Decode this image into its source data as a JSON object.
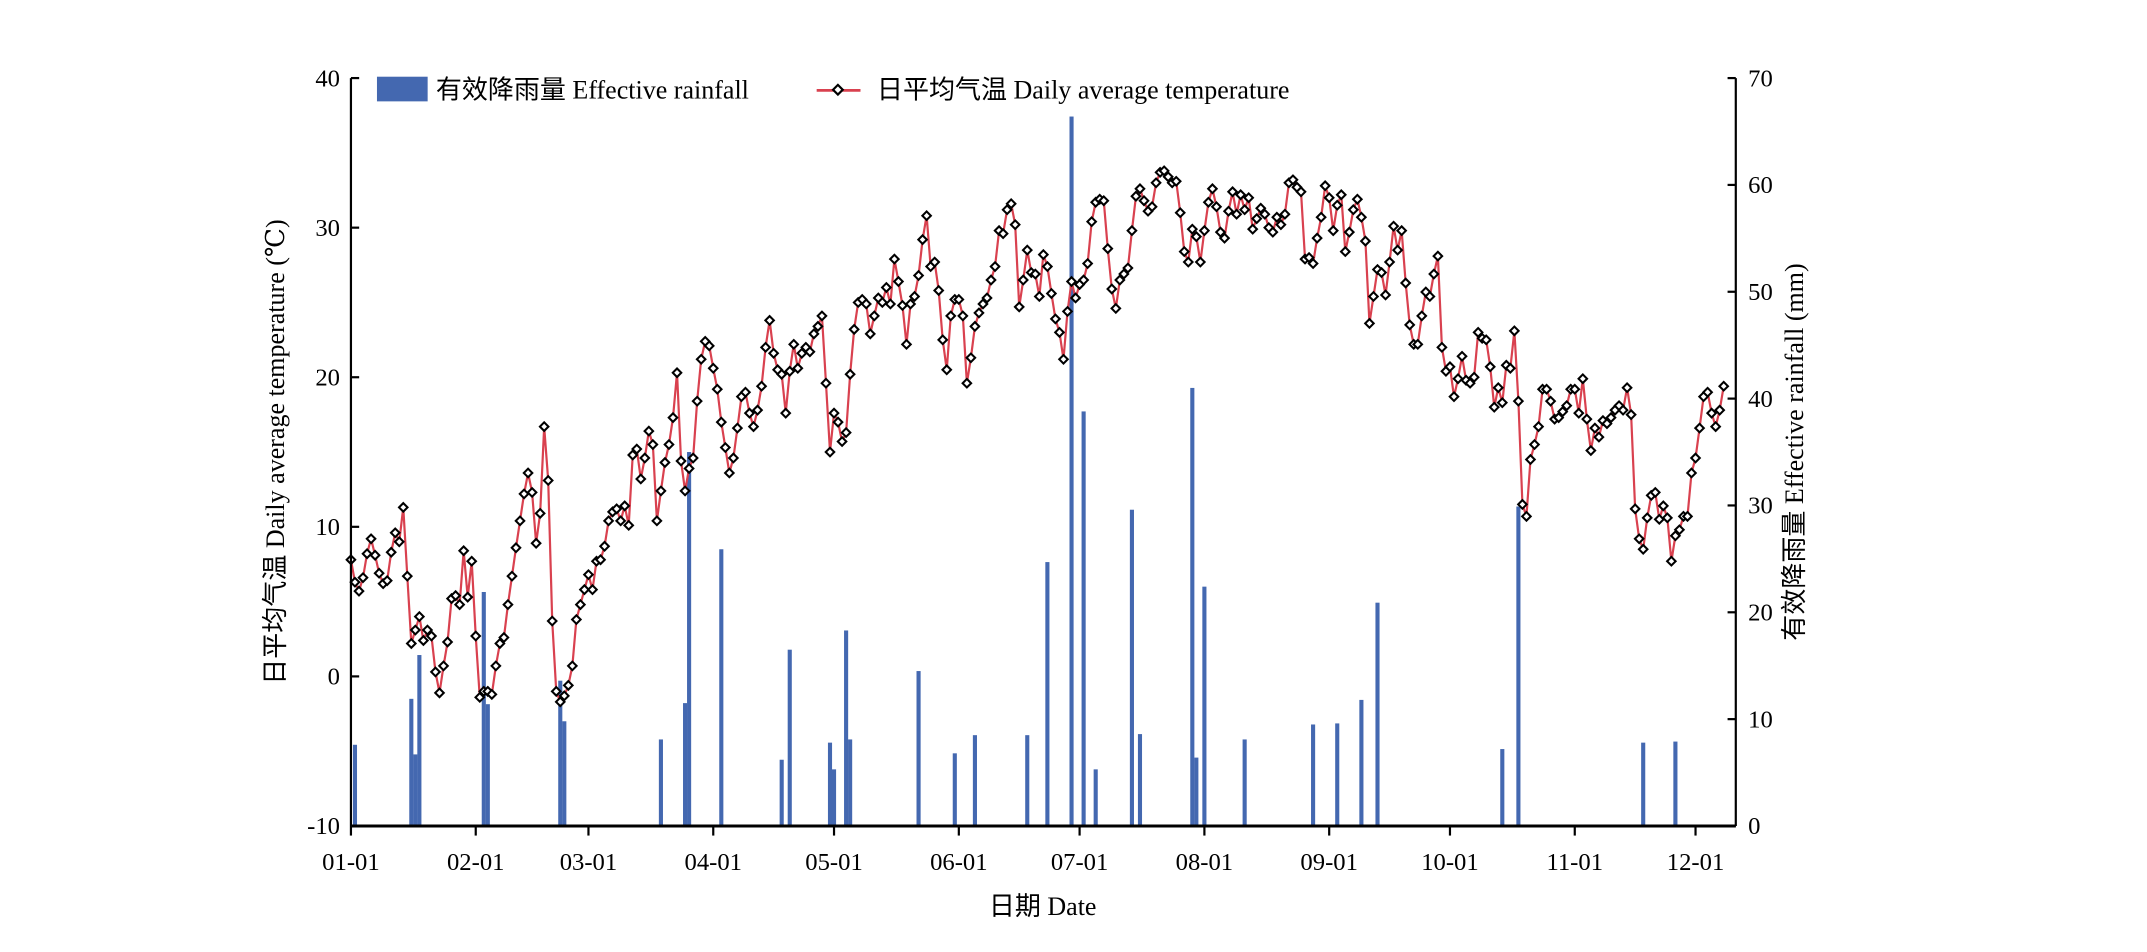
{
  "chart_data": {
    "type": "bar+line",
    "title": "",
    "xlabel": "日期 Date",
    "ylabel_left": "日平均气温 Daily average temperature (℃)",
    "ylabel_right": "有效降雨量 Effective rainfall (mm)",
    "x_unit": "day of year (0 = 01-01)",
    "xlim": [
      0,
      344
    ],
    "ylim_left": [
      -10,
      40
    ],
    "ylim_right": [
      0,
      70
    ],
    "x_ticks": [
      {
        "day": 0,
        "label": "01-01"
      },
      {
        "day": 31,
        "label": "02-01"
      },
      {
        "day": 59,
        "label": "03-01"
      },
      {
        "day": 90,
        "label": "04-01"
      },
      {
        "day": 120,
        "label": "05-01"
      },
      {
        "day": 151,
        "label": "06-01"
      },
      {
        "day": 181,
        "label": "07-01"
      },
      {
        "day": 212,
        "label": "08-01"
      },
      {
        "day": 243,
        "label": "09-01"
      },
      {
        "day": 273,
        "label": "10-01"
      },
      {
        "day": 304,
        "label": "11-01"
      },
      {
        "day": 334,
        "label": "12-01"
      }
    ],
    "y_ticks_left": [
      -10,
      0,
      10,
      20,
      30,
      40
    ],
    "y_ticks_right": [
      0,
      10,
      20,
      30,
      40,
      50,
      60,
      70
    ],
    "legend": {
      "placement": "top-left",
      "items": [
        "有效降雨量 Effective rainfall",
        "日平均气温 Daily average temperature"
      ]
    },
    "colors": {
      "rainfall": "#4468b0",
      "temperature": "#d9414f",
      "marker": "#000000"
    },
    "series": [
      {
        "name": "日平均气温 Daily average temperature",
        "type": "line",
        "axis": "left",
        "values": [
          7.8,
          6.3,
          5.7,
          6.6,
          8.2,
          9.2,
          8.1,
          6.9,
          6.2,
          6.4,
          8.3,
          9.6,
          9.0,
          11.3,
          6.7,
          2.2,
          3.1,
          4.0,
          2.4,
          3.1,
          2.7,
          0.3,
          -1.1,
          0.7,
          2.3,
          5.2,
          5.4,
          4.8,
          8.4,
          5.3,
          7.7,
          2.7,
          -1.4,
          -1.0,
          -1.0,
          -1.2,
          0.7,
          2.2,
          2.6,
          4.8,
          6.7,
          8.6,
          10.4,
          12.2,
          13.6,
          12.3,
          8.9,
          10.9,
          16.7,
          13.1,
          3.7,
          -1.0,
          -1.7,
          -1.3,
          -0.6,
          0.7,
          3.8,
          4.8,
          5.8,
          6.8,
          5.8,
          7.7,
          7.8,
          8.7,
          10.4,
          11.0,
          11.2,
          10.4,
          11.4,
          10.1,
          14.8,
          15.2,
          13.2,
          14.6,
          16.4,
          15.5,
          10.4,
          12.4,
          14.3,
          15.5,
          17.3,
          20.3,
          14.4,
          12.4,
          13.9,
          14.6,
          18.4,
          21.2,
          22.4,
          22.1,
          20.6,
          19.2,
          17.0,
          15.3,
          13.6,
          14.6,
          16.6,
          18.7,
          19.0,
          17.6,
          16.7,
          17.8,
          19.4,
          22.0,
          23.8,
          21.6,
          20.5,
          20.2,
          17.6,
          20.4,
          22.2,
          20.6,
          21.6,
          22.0,
          21.7,
          22.9,
          23.4,
          24.1,
          19.6,
          15.0,
          17.6,
          17.0,
          15.7,
          16.3,
          20.2,
          23.2,
          25.0,
          25.2,
          24.9,
          22.9,
          24.1,
          25.3,
          25.0,
          26.0,
          24.9,
          27.9,
          26.4,
          24.8,
          22.2,
          24.9,
          25.4,
          26.8,
          29.2,
          30.8,
          27.4,
          27.7,
          25.8,
          22.5,
          20.5,
          24.1,
          25.2,
          25.2,
          24.1,
          19.6,
          21.3,
          23.4,
          24.3,
          24.9,
          25.3,
          26.5,
          27.4,
          29.8,
          29.6,
          31.2,
          31.6,
          30.2,
          24.7,
          26.5,
          28.5,
          27.0,
          26.9,
          25.4,
          28.2,
          27.4,
          25.6,
          23.9,
          23.0,
          21.2,
          24.4,
          26.4,
          25.3,
          26.2,
          26.5,
          27.6,
          30.4,
          31.7,
          31.9,
          31.8,
          28.6,
          25.9,
          24.6,
          26.5,
          26.9,
          27.3,
          29.8,
          32.1,
          32.6,
          31.8,
          31.1,
          31.4,
          33.0,
          33.7,
          33.8,
          33.4,
          33.0,
          33.1,
          31.0,
          28.4,
          27.7,
          29.9,
          29.4,
          27.7,
          29.8,
          31.7,
          32.6,
          31.4,
          29.7,
          29.3,
          31.1,
          32.4,
          30.9,
          32.2,
          31.2,
          32.0,
          29.9,
          30.6,
          31.3,
          30.9,
          30.0,
          29.7,
          30.7,
          30.2,
          30.9,
          33.0,
          33.2,
          32.7,
          32.4,
          27.9,
          28.0,
          27.6,
          29.3,
          30.7,
          32.8,
          32.0,
          29.8,
          31.5,
          32.2,
          28.4,
          29.7,
          31.2,
          31.9,
          30.7,
          29.1,
          23.6,
          25.4,
          27.2,
          27.0,
          25.5,
          27.7,
          30.1,
          28.5,
          29.8,
          26.3,
          23.5,
          22.2,
          22.2,
          24.1,
          25.7,
          25.4,
          26.9,
          28.1,
          22.0,
          20.4,
          20.7,
          18.7,
          19.9,
          21.4,
          19.8,
          19.6,
          20.0,
          23.0,
          22.6,
          22.5,
          20.7,
          18.0,
          19.3,
          18.3,
          20.8,
          20.6,
          23.1,
          18.4,
          11.5,
          10.7,
          14.5,
          15.5,
          16.7,
          19.2,
          19.2,
          18.4,
          17.2,
          17.3,
          17.7,
          18.1,
          19.2,
          19.2,
          17.6,
          19.9,
          17.2,
          15.1,
          16.6,
          16.0,
          17.1,
          16.9,
          17.3,
          17.8,
          18.1,
          17.8,
          19.3,
          17.5,
          11.2,
          9.2,
          8.5,
          10.6,
          12.1,
          12.3,
          10.5,
          11.4,
          10.6,
          7.7,
          9.4,
          9.8,
          10.7,
          10.7,
          13.6,
          14.6,
          16.6,
          18.7,
          19.0,
          17.6,
          16.7,
          17.8,
          19.4
        ]
      },
      {
        "name": "有效降雨量 Effective rainfall",
        "type": "bar",
        "axis": "right",
        "points": [
          {
            "day": 1,
            "mm": 7.6
          },
          {
            "day": 15,
            "mm": 11.9
          },
          {
            "day": 16,
            "mm": 6.7
          },
          {
            "day": 17,
            "mm": 16.0
          },
          {
            "day": 33,
            "mm": 21.9
          },
          {
            "day": 34,
            "mm": 11.4
          },
          {
            "day": 52,
            "mm": 13.6
          },
          {
            "day": 53,
            "mm": 9.8
          },
          {
            "day": 77,
            "mm": 8.1
          },
          {
            "day": 83,
            "mm": 11.5
          },
          {
            "day": 84,
            "mm": 35.0
          },
          {
            "day": 92,
            "mm": 25.9
          },
          {
            "day": 107,
            "mm": 6.2
          },
          {
            "day": 109,
            "mm": 16.5
          },
          {
            "day": 119,
            "mm": 7.8
          },
          {
            "day": 120,
            "mm": 5.3
          },
          {
            "day": 123,
            "mm": 18.3
          },
          {
            "day": 124,
            "mm": 8.1
          },
          {
            "day": 141,
            "mm": 14.5
          },
          {
            "day": 150,
            "mm": 6.8
          },
          {
            "day": 155,
            "mm": 8.5
          },
          {
            "day": 168,
            "mm": 8.5
          },
          {
            "day": 173,
            "mm": 24.7
          },
          {
            "day": 179,
            "mm": 66.4
          },
          {
            "day": 182,
            "mm": 38.8
          },
          {
            "day": 185,
            "mm": 5.3
          },
          {
            "day": 194,
            "mm": 29.6
          },
          {
            "day": 196,
            "mm": 8.6
          },
          {
            "day": 209,
            "mm": 41.0
          },
          {
            "day": 210,
            "mm": 6.4
          },
          {
            "day": 212,
            "mm": 22.4
          },
          {
            "day": 222,
            "mm": 8.1
          },
          {
            "day": 239,
            "mm": 9.5
          },
          {
            "day": 245,
            "mm": 9.6
          },
          {
            "day": 251,
            "mm": 11.8
          },
          {
            "day": 255,
            "mm": 20.9
          },
          {
            "day": 286,
            "mm": 7.2
          },
          {
            "day": 290,
            "mm": 29.9
          },
          {
            "day": 321,
            "mm": 7.8
          },
          {
            "day": 329,
            "mm": 7.9
          }
        ]
      }
    ]
  }
}
